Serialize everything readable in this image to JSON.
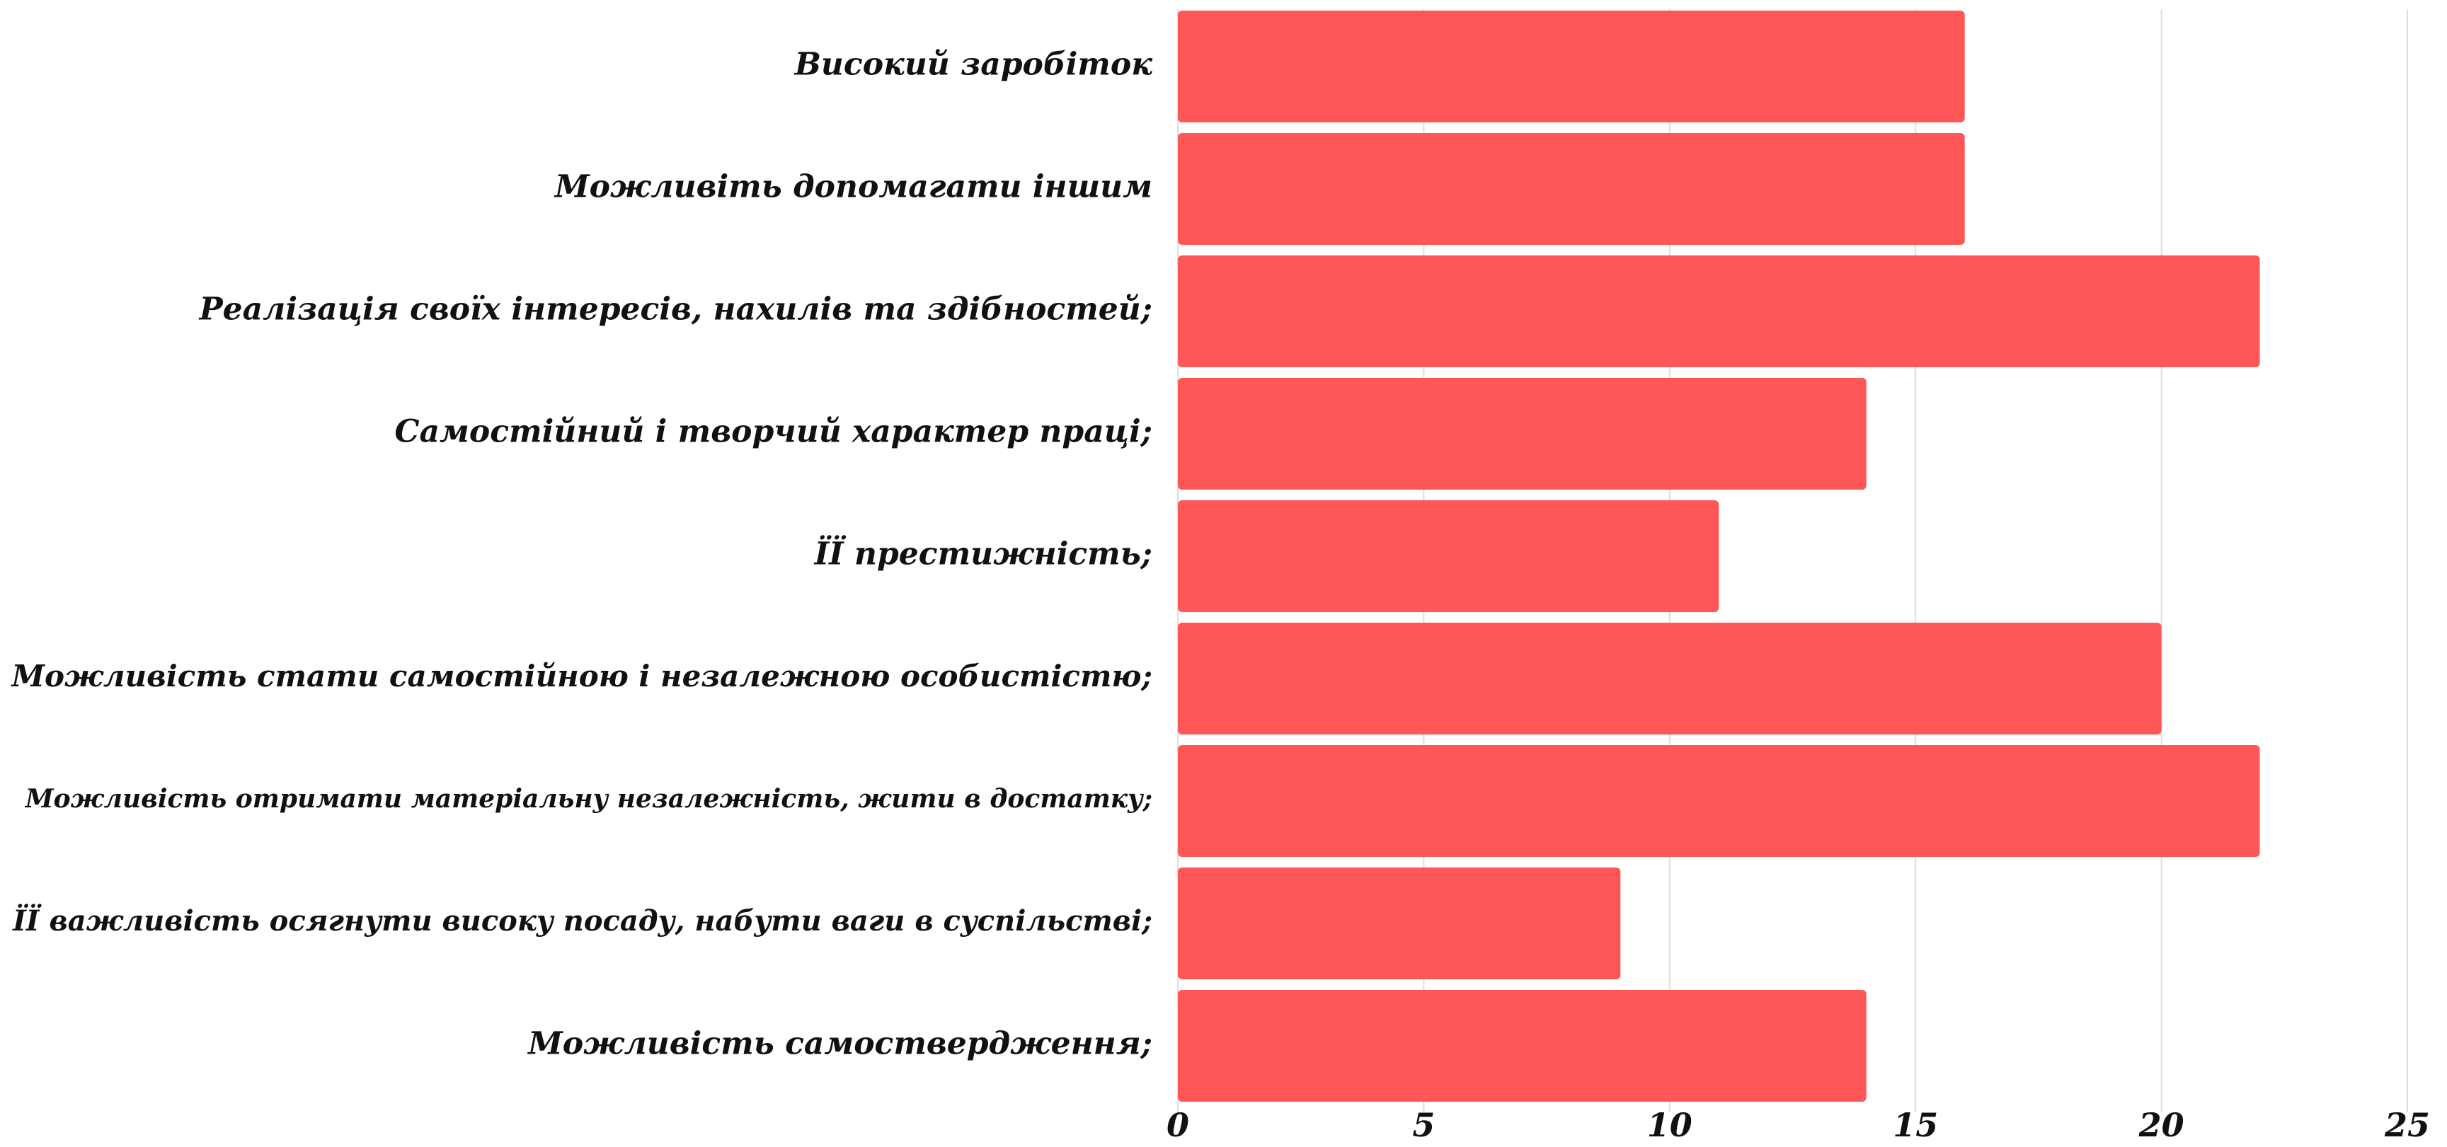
{
  "chart_data": {
    "type": "bar",
    "orientation": "horizontal",
    "categories": [
      "Високий заробіток",
      "Можливіть допомагати іншим",
      "Реалізація своїх інтересів, нахилів та здібностей;",
      "Самостійний і творчий характер праці;",
      "ЇЇ престижність;",
      "Можливість стати самостійною і незалежною особистістю;",
      "Можливість отримати матеріальну незалежність, жити в достатку;",
      "ЇЇ важливість осягнути високу посаду, набути ваги в суспільстві;",
      "Можливість самоствердження;"
    ],
    "values": [
      16,
      16,
      22,
      14,
      11,
      20,
      22,
      9,
      14
    ],
    "x_ticks": [
      "0",
      "5",
      "10",
      "15",
      "20",
      "25"
    ],
    "xlim": [
      0,
      25
    ],
    "grid": true,
    "legend": "none",
    "title": "",
    "xlabel": "",
    "ylabel": "",
    "colors": {
      "bar": "#ff5757",
      "grid": "#dddddd",
      "text": "#111111"
    }
  }
}
